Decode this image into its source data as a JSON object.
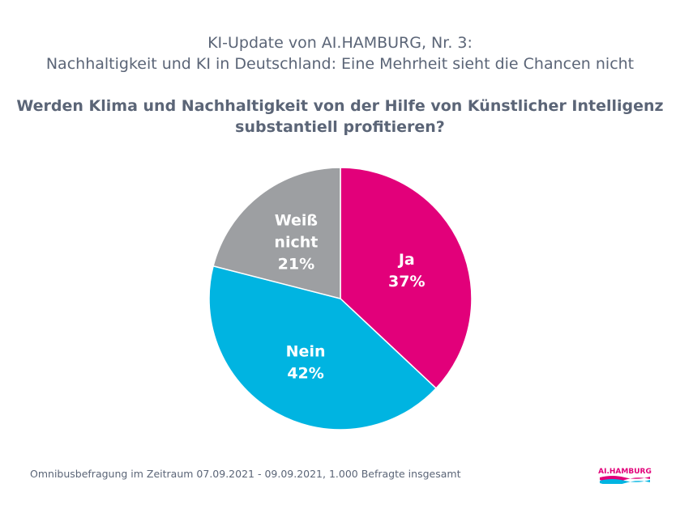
{
  "title_lines": [
    "KI-Update von AI.HAMBURG, Nr. 3:",
    "Nachhaltigkeit und KI in Deutschland: Eine Mehrheit sieht die Chancen nicht"
  ],
  "question_lines": [
    "Werden Klima und Nachhaltigkeit von der Hilfe von Künstlicher Intelligenz",
    "substantiell profitieren?"
  ],
  "footer": "Omnibusbefragung im Zeitraum 07.09.2021 - 09.09.2021, 1.000 Befragte insgesamt",
  "logo_text": "AI.HAMBURG",
  "chart_data": {
    "type": "pie",
    "title": "Werden Klima und Nachhaltigkeit von der Hilfe von Künstlicher Intelligenz substantiell profitieren?",
    "start": "top",
    "direction": "clockwise",
    "slices": [
      {
        "label_lines": [
          "Ja"
        ],
        "value": 37,
        "value_label": "37%",
        "color": "#e2007a"
      },
      {
        "label_lines": [
          "Nein"
        ],
        "value": 42,
        "value_label": "42%",
        "color": "#00b4e1"
      },
      {
        "label_lines": [
          "Weiß",
          "nicht"
        ],
        "value": 21,
        "value_label": "21%",
        "color": "#9d9fa2"
      }
    ]
  }
}
